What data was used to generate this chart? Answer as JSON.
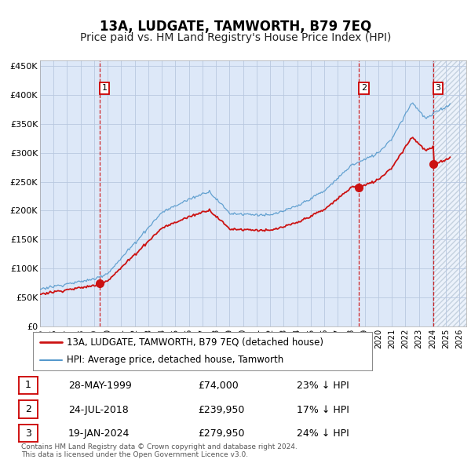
{
  "title": "13A, LUDGATE, TAMWORTH, B79 7EQ",
  "subtitle": "Price paid vs. HM Land Registry's House Price Index (HPI)",
  "ylim": [
    0,
    460000
  ],
  "xlim_start": 1995.0,
  "xlim_end": 2026.5,
  "yticks": [
    0,
    50000,
    100000,
    150000,
    200000,
    250000,
    300000,
    350000,
    400000,
    450000
  ],
  "ytick_labels": [
    "£0",
    "£50K",
    "£100K",
    "£150K",
    "£200K",
    "£250K",
    "£300K",
    "£350K",
    "£400K",
    "£450K"
  ],
  "xticks": [
    1995,
    1996,
    1997,
    1998,
    1999,
    2000,
    2001,
    2002,
    2003,
    2004,
    2005,
    2006,
    2007,
    2008,
    2009,
    2010,
    2011,
    2012,
    2013,
    2014,
    2015,
    2016,
    2017,
    2018,
    2019,
    2020,
    2021,
    2022,
    2023,
    2024,
    2025,
    2026
  ],
  "background_color": "#dde8f8",
  "grid_color": "#b8c8e0",
  "legend_entries": [
    {
      "label": "13A, LUDGATE, TAMWORTH, B79 7EQ (detached house)",
      "color": "#cc1111",
      "lw": 1.5
    },
    {
      "label": "HPI: Average price, detached house, Tamworth",
      "color": "#5599cc",
      "lw": 1.0
    }
  ],
  "sale_points": [
    {
      "date_num": 1999.41,
      "price": 74000,
      "label": "1"
    },
    {
      "date_num": 2018.56,
      "price": 239950,
      "label": "2"
    },
    {
      "date_num": 2024.05,
      "price": 279950,
      "label": "3"
    }
  ],
  "sale_table": [
    {
      "num": "1",
      "date": "28-MAY-1999",
      "price": "£74,000",
      "pct": "23% ↓ HPI"
    },
    {
      "num": "2",
      "date": "24-JUL-2018",
      "price": "£239,950",
      "pct": "17% ↓ HPI"
    },
    {
      "num": "3",
      "date": "19-JAN-2024",
      "price": "£279,950",
      "pct": "24% ↓ HPI"
    }
  ],
  "footer": "Contains HM Land Registry data © Crown copyright and database right 2024.\nThis data is licensed under the Open Government Licence v3.0.",
  "hpi_color": "#5599cc",
  "price_color": "#cc1111",
  "vline_color": "#cc0000",
  "title_fontsize": 12,
  "subtitle_fontsize": 10
}
